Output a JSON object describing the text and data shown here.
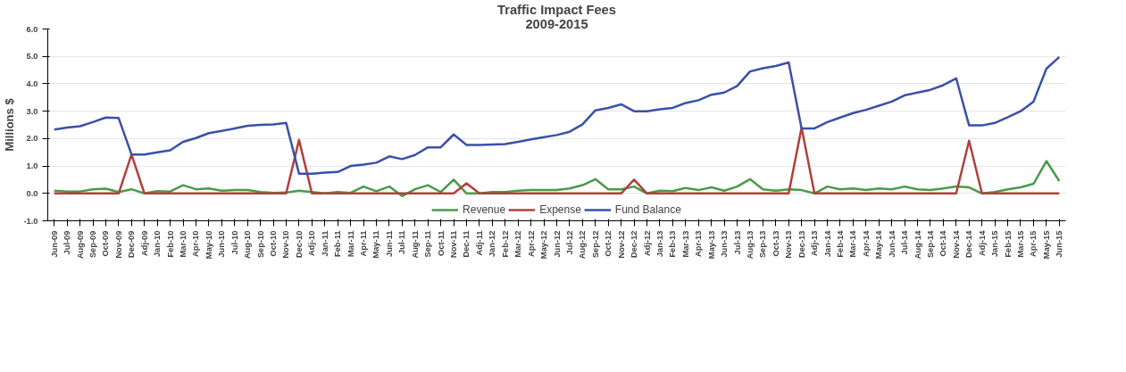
{
  "chart_data": {
    "type": "line",
    "title": "Traffic Impact Fees",
    "subtitle": "2009-2015",
    "ylabel": "Millions $",
    "categories": [
      "Jun-09",
      "Jul-09",
      "Aug-09",
      "Sep-09",
      "Oct-09",
      "Nov-09",
      "Dec-09",
      "Adj-09",
      "Jan-10",
      "Feb-10",
      "Mar-10",
      "Apr-10",
      "May-10",
      "Jun-10",
      "Jul-10",
      "Aug-10",
      "Sep-10",
      "Oct-10",
      "Nov-10",
      "Dec-10",
      "Adj-10",
      "Jan-11",
      "Feb-11",
      "Mar-11",
      "Apr-11",
      "May-11",
      "Jun-11",
      "Jul-11",
      "Aug-11",
      "Sep-11",
      "Oct-11",
      "Nov-11",
      "Dec-11",
      "Adj-11",
      "Jan-12",
      "Feb-12",
      "Mar-12",
      "Apr-12",
      "May-12",
      "Jun-12",
      "Jul-12",
      "Aug-12",
      "Sep-12",
      "Oct-12",
      "Nov-12",
      "Dec-12",
      "Adj-12",
      "Jan-13",
      "Feb-13",
      "Mar-13",
      "Apr-13",
      "May-13",
      "Jun-13",
      "Jul-13",
      "Aug-13",
      "Sep-13",
      "Oct-13",
      "Nov-13",
      "Dec-13",
      "Adj-13",
      "Jan-14",
      "Feb-14",
      "Mar-14",
      "Apr-14",
      "May-14",
      "Jun-14",
      "Jul-14",
      "Aug-14",
      "Sep-14",
      "Oct-14",
      "Nov-14",
      "Dec-14",
      "Adj-14",
      "Jan-15",
      "Feb-15",
      "Mar-15",
      "Apr-15",
      "May-15",
      "Jun-15"
    ],
    "series": [
      {
        "name": "Revenue",
        "color": "#4a9a4a",
        "values": [
          0.1,
          0.07,
          0.07,
          0.15,
          0.17,
          0.05,
          0.15,
          0.0,
          0.08,
          0.07,
          0.3,
          0.15,
          0.18,
          0.1,
          0.12,
          0.12,
          0.05,
          0.02,
          0.03,
          0.1,
          0.05,
          0.0,
          0.05,
          0.02,
          0.25,
          0.08,
          0.25,
          -0.1,
          0.15,
          0.3,
          0.05,
          0.5,
          0.0,
          0.0,
          0.05,
          0.05,
          0.1,
          0.12,
          0.12,
          0.12,
          0.18,
          0.3,
          0.52,
          0.15,
          0.15,
          0.25,
          0.0,
          0.1,
          0.08,
          0.2,
          0.12,
          0.22,
          0.1,
          0.25,
          0.52,
          0.15,
          0.1,
          0.15,
          0.12,
          0.0,
          0.25,
          0.15,
          0.18,
          0.12,
          0.18,
          0.15,
          0.25,
          0.15,
          0.12,
          0.18,
          0.25,
          0.22,
          0.0,
          0.05,
          0.15,
          0.22,
          0.35,
          1.18,
          0.45
        ]
      },
      {
        "name": "Expense",
        "color": "#b0403c",
        "values": [
          0,
          0,
          0,
          0,
          0,
          0,
          1.42,
          0,
          0,
          0,
          0,
          0,
          0,
          0,
          0,
          0,
          0,
          0,
          0,
          1.95,
          0,
          0,
          0,
          0,
          0,
          0,
          0,
          0,
          0,
          0,
          0,
          0,
          0.37,
          0,
          0,
          0,
          0,
          0,
          0,
          0,
          0,
          0,
          0,
          0,
          0,
          0.5,
          0,
          0,
          0,
          0,
          0,
          0,
          0,
          0,
          0,
          0,
          0,
          0,
          2.4,
          0,
          0,
          0,
          0,
          0,
          0,
          0,
          0,
          0,
          0,
          0,
          0,
          1.92,
          0,
          0,
          0,
          0,
          0,
          0,
          0
        ]
      },
      {
        "name": "Fund Balance",
        "color": "#3a50a8",
        "values": [
          2.33,
          2.4,
          2.45,
          2.6,
          2.77,
          2.75,
          1.42,
          1.42,
          1.5,
          1.57,
          1.88,
          2.02,
          2.2,
          2.28,
          2.37,
          2.47,
          2.5,
          2.52,
          2.57,
          0.72,
          0.72,
          0.76,
          0.78,
          1.0,
          1.05,
          1.12,
          1.35,
          1.25,
          1.4,
          1.68,
          1.68,
          2.15,
          1.77,
          1.77,
          1.78,
          1.8,
          1.88,
          1.97,
          2.05,
          2.13,
          2.25,
          2.52,
          3.03,
          3.12,
          3.25,
          3.0,
          3.0,
          3.07,
          3.12,
          3.3,
          3.4,
          3.6,
          3.68,
          3.92,
          4.45,
          4.57,
          4.65,
          4.78,
          2.37,
          2.37,
          2.6,
          2.77,
          2.93,
          3.05,
          3.2,
          3.35,
          3.58,
          3.68,
          3.78,
          3.95,
          4.2,
          2.48,
          2.48,
          2.57,
          2.78,
          3.0,
          3.35,
          4.55,
          4.98
        ]
      }
    ],
    "ylim": [
      -1,
      6
    ],
    "yticks": [
      {
        "value": -1,
        "label": "-1.0"
      },
      {
        "value": 0,
        "label": "0.0"
      },
      {
        "value": 1,
        "label": "1.0"
      },
      {
        "value": 2,
        "label": "2.0"
      },
      {
        "value": 3,
        "label": "3.0"
      },
      {
        "value": 4,
        "label": "4.0"
      },
      {
        "value": 5,
        "label": "5.0"
      },
      {
        "value": 6,
        "label": "6.0"
      }
    ],
    "grid": "y",
    "legend": "bottom",
    "marker": "none",
    "line_style": "solid"
  }
}
